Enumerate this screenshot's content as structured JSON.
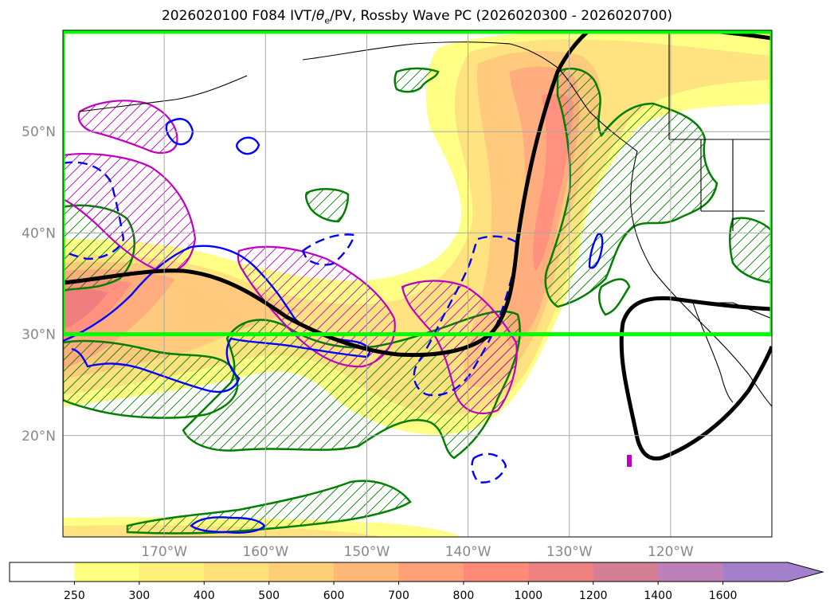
{
  "title": {
    "prefix": "2026020100 F084 IVT/",
    "theta": "θ",
    "sub": "e",
    "suffix": "/PV, Rossby Wave PC (2026020300 - 2026020700)"
  },
  "map": {
    "lon_range": [
      -180,
      -110
    ],
    "lat_range": [
      10,
      60
    ],
    "lat_labels": [
      {
        "value": 50,
        "text": "50°N"
      },
      {
        "value": 40,
        "text": "40°N"
      },
      {
        "value": 30,
        "text": "30°N"
      },
      {
        "value": 20,
        "text": "20°N"
      }
    ],
    "lon_labels": [
      {
        "value": -170,
        "text": "170°W"
      },
      {
        "value": -160,
        "text": "160°W"
      },
      {
        "value": -150,
        "text": "150°W"
      },
      {
        "value": -140,
        "text": "140°W"
      },
      {
        "value": -130,
        "text": "130°W"
      },
      {
        "value": -120,
        "text": "120°W"
      }
    ],
    "highlight_box": {
      "lon": [
        -180,
        -110
      ],
      "lat": [
        30,
        60
      ],
      "color": "#00ff00"
    }
  },
  "colorbar": {
    "levels": [
      "250",
      "300",
      "400",
      "500",
      "600",
      "700",
      "800",
      "1000",
      "1200",
      "1400",
      "1600"
    ],
    "colors": [
      "#ffffff",
      "#ffff80",
      "#fff07a",
      "#ffe078",
      "#ffcf78",
      "#ffb878",
      "#ffa078",
      "#ff8a78",
      "#ef8080",
      "#d57f95",
      "#bd80b8",
      "#a480cc"
    ]
  },
  "colors": {
    "ivt_fill": [
      "#ffff80",
      "#ffe27a",
      "#ffc878",
      "#ffa878",
      "#ff8c78",
      "#f07878"
    ],
    "wave_line": "#000000",
    "theta_e": "#0000ff",
    "pv_magenta": "#c000c0",
    "pv_green": "#007f00",
    "coast": "#000000",
    "grid": "#aaaaaa"
  }
}
